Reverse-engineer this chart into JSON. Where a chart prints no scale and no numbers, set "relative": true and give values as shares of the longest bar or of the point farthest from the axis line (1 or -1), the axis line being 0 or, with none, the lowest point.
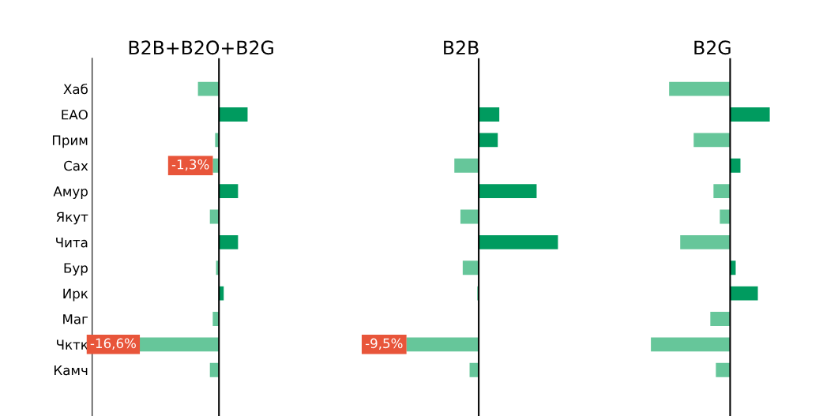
{
  "chart_data": [
    {
      "type": "bar",
      "orientation": "horizontal",
      "title": "B2B+B2O+B2G",
      "tick_labels": "y",
      "categories": [
        "Хаб",
        "ЕАО",
        "Прим",
        "Сах",
        "Амур",
        "Якут",
        "Чита",
        "Бур",
        "Ирк",
        "Маг",
        "Чктк",
        "Камч"
      ],
      "values": [
        -4.4,
        6.0,
        -0.8,
        -1.3,
        4.0,
        -1.9,
        4.0,
        -0.6,
        1.0,
        -1.3,
        -16.6,
        -1.9
      ],
      "colors": [
        "#66c69a",
        "#009b5f",
        "#66c69a",
        "#66c69a",
        "#009b5f",
        "#66c69a",
        "#009b5f",
        "#66c69a",
        "#009b5f",
        "#66c69a",
        "#66c69a",
        "#66c69a"
      ],
      "value_labels": [
        null,
        null,
        null,
        "-1,3%",
        null,
        null,
        null,
        null,
        null,
        null,
        "-16,6%",
        null
      ]
    },
    {
      "type": "bar",
      "orientation": "horizontal",
      "title": "B2B",
      "tick_labels": false,
      "categories": [
        null,
        null,
        null,
        null,
        null,
        null,
        null,
        null,
        null,
        null,
        null,
        null
      ],
      "values": [
        0,
        2.7,
        2.5,
        -3.2,
        7.6,
        -2.4,
        10.4,
        -2.1,
        -0.2,
        0,
        -9.5,
        -1.2
      ],
      "colors": [
        "#66c69a",
        "#009b5f",
        "#009b5f",
        "#66c69a",
        "#009b5f",
        "#66c69a",
        "#009b5f",
        "#66c69a",
        "#66c69a",
        "#66c69a",
        "#66c69a",
        "#66c69a"
      ],
      "value_labels": [
        null,
        null,
        null,
        null,
        null,
        null,
        null,
        null,
        null,
        null,
        "-9,5%",
        null
      ]
    },
    {
      "type": "bar",
      "orientation": "horizontal",
      "relative": true,
      "title": "B2G",
      "tick_labels": false,
      "categories": [
        null,
        null,
        null,
        null,
        null,
        null,
        null,
        null,
        null,
        null,
        null,
        null
      ],
      "values": [
        -0.77,
        0.5,
        -0.46,
        0.13,
        -0.21,
        -0.13,
        -0.63,
        0.07,
        0.35,
        -0.25,
        -1,
        -0.18
      ],
      "colors": [
        "#66c69a",
        "#009b5f",
        "#66c69a",
        "#009b5f",
        "#66c69a",
        "#66c69a",
        "#66c69a",
        "#009b5f",
        "#009b5f",
        "#66c69a",
        "#66c69a",
        "#66c69a"
      ]
    }
  ]
}
